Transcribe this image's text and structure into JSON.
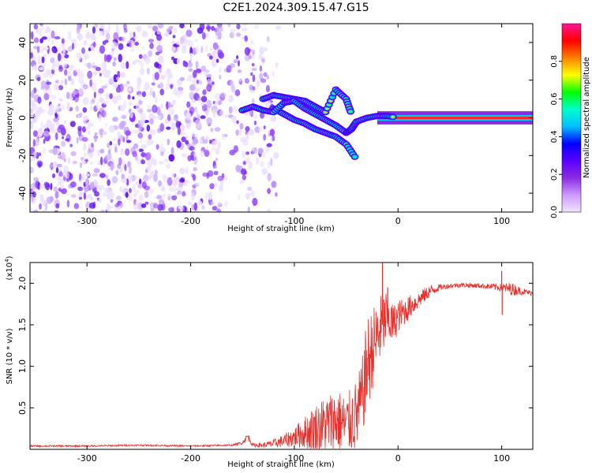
{
  "figure": {
    "title": "C2E1.2024.309.15.47.G15"
  },
  "chart_data": [
    {
      "type": "heatmap",
      "xlabel": "Height of straight line (km)",
      "ylabel": "Frequency (Hz)",
      "xlim": [
        -355,
        130
      ],
      "ylim": [
        -50,
        50
      ],
      "x_ticks": [
        -300,
        -200,
        -100,
        0,
        100
      ],
      "x_tick_labels": [
        "-300",
        "-200",
        "-100",
        "0",
        "100"
      ],
      "y_ticks": [
        -40,
        -20,
        0,
        20,
        40
      ],
      "y_tick_labels": [
        "-40",
        "-20",
        "0",
        "20",
        "40"
      ],
      "colorbar": {
        "label": "Normalized spectral amplitude",
        "range": [
          0,
          1
        ],
        "ticks": [
          0.0,
          0.2,
          0.4,
          0.6,
          0.8
        ],
        "tick_labels": [
          "0.0",
          "0.2",
          "0.4",
          "0.6",
          "0.8"
        ],
        "colors": [
          "#f0e6ff",
          "#cc99ff",
          "#8a2be2",
          "#5a00ff",
          "#0000ff",
          "#00bfff",
          "#00ffcc",
          "#00ff00",
          "#ffff00",
          "#ff8000",
          "#ff0000",
          "#ff1493"
        ]
      },
      "features": {
        "noise_region_x": [
          -355,
          -115
        ],
        "noise_amplitude": [
          0.0,
          0.25
        ],
        "main_track": [
          {
            "x": -150,
            "y": 4
          },
          {
            "x": -140,
            "y": 6
          },
          {
            "x": -130,
            "y": 4
          },
          {
            "x": -120,
            "y": 3
          },
          {
            "x": -110,
            "y": 8
          },
          {
            "x": -100,
            "y": 9
          },
          {
            "x": -90,
            "y": 5
          },
          {
            "x": -80,
            "y": 2
          },
          {
            "x": -70,
            "y": -1
          },
          {
            "x": -60,
            "y": -4
          },
          {
            "x": -50,
            "y": -8
          },
          {
            "x": -45,
            "y": -6
          },
          {
            "x": -40,
            "y": -2
          },
          {
            "x": -30,
            "y": 0
          },
          {
            "x": -20,
            "y": 1
          },
          {
            "x": -10,
            "y": 1
          },
          {
            "x": 0,
            "y": 0
          },
          {
            "x": 50,
            "y": 0
          },
          {
            "x": 100,
            "y": 0
          },
          {
            "x": 130,
            "y": 0
          }
        ],
        "lower_branch": [
          {
            "x": -120,
            "y": 5
          },
          {
            "x": -110,
            "y": 2
          },
          {
            "x": -100,
            "y": -1
          },
          {
            "x": -90,
            "y": -3
          },
          {
            "x": -80,
            "y": -6
          },
          {
            "x": -70,
            "y": -8
          },
          {
            "x": -60,
            "y": -10
          },
          {
            "x": -50,
            "y": -14
          },
          {
            "x": -40,
            "y": -22
          }
        ],
        "upper_branch": [
          {
            "x": -130,
            "y": 10
          },
          {
            "x": -120,
            "y": 12
          },
          {
            "x": -110,
            "y": 11
          },
          {
            "x": -100,
            "y": 10
          },
          {
            "x": -90,
            "y": 9
          },
          {
            "x": -80,
            "y": 6
          },
          {
            "x": -70,
            "y": 3
          },
          {
            "x": -60,
            "y": 15
          },
          {
            "x": -50,
            "y": 10
          },
          {
            "x": -45,
            "y": 2
          }
        ]
      }
    },
    {
      "type": "line",
      "xlabel": "Height of straight line (km)",
      "ylabel": "SNR (10 * v/v)",
      "y_scale_label": "(x10",
      "y_scale_exponent": "4",
      "y_scale_suffix": ")",
      "xlim": [
        -355,
        130
      ],
      "ylim": [
        0,
        2.25
      ],
      "x_ticks": [
        -300,
        -200,
        -100,
        0,
        100
      ],
      "x_tick_labels": [
        "-300",
        "-200",
        "-100",
        "0",
        "100"
      ],
      "y_ticks": [
        0.5,
        1.0,
        1.5,
        2.0
      ],
      "y_tick_labels": [
        "0.5",
        "1.0",
        "1.5",
        "2.0"
      ],
      "line_color": "#e8302c",
      "series": [
        {
          "x": [
            -355,
            -300,
            -250,
            -200,
            -160,
            -150,
            -145,
            -140,
            -130,
            -120,
            -110,
            -100,
            -90,
            -80,
            -70,
            -60,
            -50,
            -40,
            -35,
            -30,
            -25,
            -20,
            -15,
            -10,
            -5,
            0,
            10,
            20,
            30,
            40,
            50,
            60,
            80,
            100,
            110,
            120,
            130
          ],
          "y": [
            0.04,
            0.04,
            0.05,
            0.04,
            0.05,
            0.08,
            0.16,
            0.05,
            0.05,
            0.07,
            0.1,
            0.15,
            0.2,
            0.25,
            0.3,
            0.35,
            0.3,
            0.4,
            0.6,
            1.0,
            1.2,
            1.35,
            1.5,
            1.6,
            1.5,
            1.6,
            1.7,
            1.8,
            1.9,
            1.95,
            1.97,
            1.98,
            1.97,
            1.95,
            1.93,
            1.9,
            1.88
          ],
          "noise_amplitude": [
            0.01,
            0.01,
            0.01,
            0.01,
            0.01,
            0.02,
            0.05,
            0.02,
            0.03,
            0.05,
            0.08,
            0.12,
            0.2,
            0.3,
            0.35,
            0.4,
            0.35,
            0.45,
            0.45,
            0.6,
            0.5,
            0.45,
            0.4,
            0.35,
            0.25,
            0.2,
            0.15,
            0.1,
            0.08,
            0.04,
            0.03,
            0.03,
            0.03,
            0.05,
            0.08,
            0.04,
            0.03
          ],
          "spikes": [
            {
              "x": -15,
              "y": 2.25
            },
            {
              "x": -10,
              "y": 1.95
            },
            {
              "x": 100,
              "y": 2.15
            },
            {
              "x": 100.5,
              "y": 1.62
            }
          ]
        }
      ]
    }
  ]
}
